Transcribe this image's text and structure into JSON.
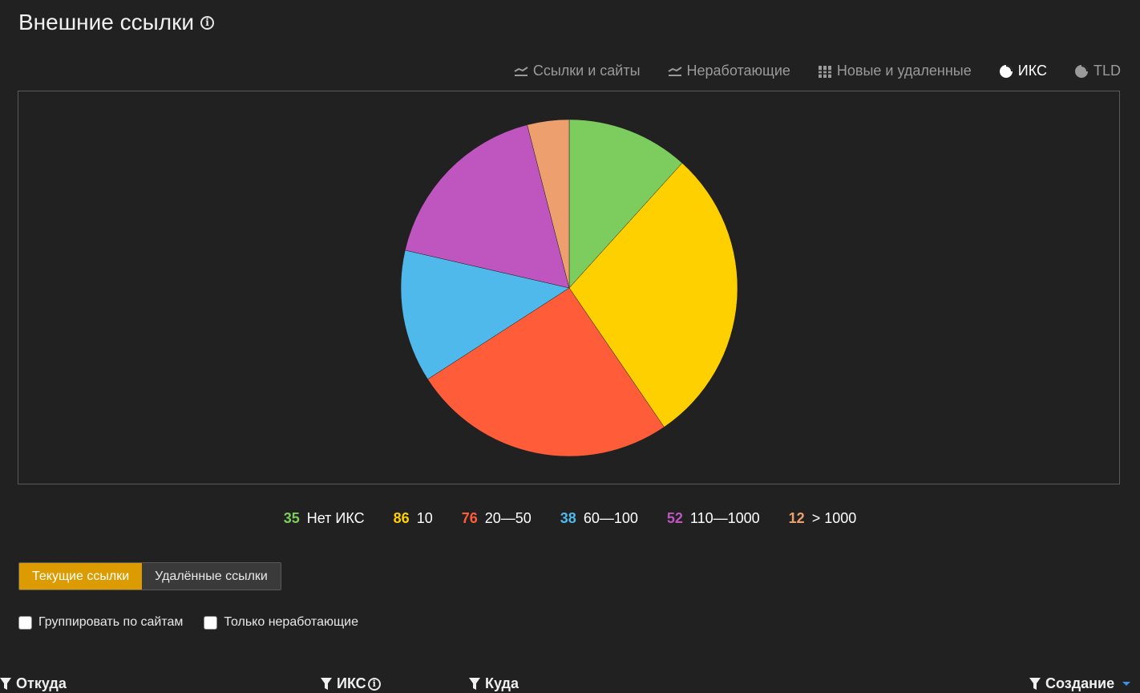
{
  "page": {
    "title": "Внешние ссылки"
  },
  "chart_tabs": [
    {
      "label": "Ссылки и сайты",
      "icon": "line-chart-icon",
      "active": false
    },
    {
      "label": "Неработающие",
      "icon": "line-chart-icon",
      "active": false
    },
    {
      "label": "Новые и удаленные",
      "icon": "bar-chart-icon",
      "active": false
    },
    {
      "label": "ИКС",
      "icon": "pie-chart-icon",
      "active": true
    },
    {
      "label": "TLD",
      "icon": "pie-chart-icon",
      "active": false
    }
  ],
  "chart_data": {
    "type": "pie",
    "categories": [
      "Нет ИКС",
      "10",
      "20—50",
      "60—100",
      "110—1000",
      "> 1000"
    ],
    "values": [
      35,
      86,
      76,
      38,
      52,
      12
    ],
    "colors": [
      "#7dcd5e",
      "#ffd000",
      "#ff5c39",
      "#4eb9ea",
      "#bf56bf",
      "#eda06d"
    ],
    "legend_position": "bottom"
  },
  "legend": [
    {
      "count": "35",
      "label": "Нет ИКС",
      "color": "#7dcd5e"
    },
    {
      "count": "86",
      "label": "10",
      "color": "#ffd000"
    },
    {
      "count": "76",
      "label": "20—50",
      "color": "#ff5c39"
    },
    {
      "count": "38",
      "label": "60—100",
      "color": "#4eb9ea"
    },
    {
      "count": "52",
      "label": "110—1000",
      "color": "#bf56bf"
    },
    {
      "count": "12",
      "label": "> 1000",
      "color": "#eda06d"
    }
  ],
  "link_tabs": {
    "current": "Текущие ссылки",
    "deleted": "Удалённые ссылки"
  },
  "filters": {
    "group_by_sites": "Группировать по сайтам",
    "broken_only": "Только неработающие"
  },
  "table": {
    "columns": {
      "from": "Откуда",
      "iks": "ИКС",
      "to": "Куда",
      "created": "Создание"
    }
  },
  "colors": {
    "accent": "#dc9b00",
    "background": "#212121",
    "sort_indicator": "#3d8fe8"
  }
}
